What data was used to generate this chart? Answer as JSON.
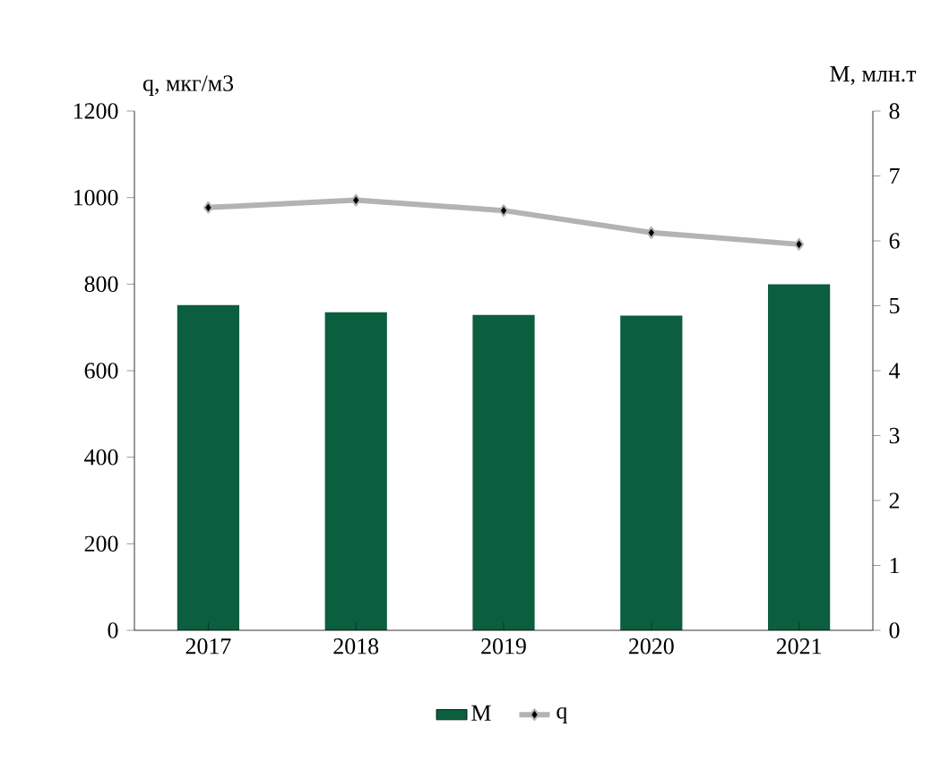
{
  "chart_data": {
    "type": "bar",
    "ylabel": "q, мкг/м3",
    "y2label": "M, млн.т",
    "categories": [
      "2017",
      "2018",
      "2019",
      "2020",
      "2021"
    ],
    "ylim": [
      0,
      1200
    ],
    "yticks": [
      0,
      200,
      400,
      600,
      800,
      1000,
      1200
    ],
    "y2lim": [
      0,
      8
    ],
    "y2ticks": [
      0,
      1,
      2,
      3,
      4,
      5,
      6,
      7,
      8
    ],
    "legend": "bottom",
    "marker": "diamond",
    "series": [
      {
        "name": "M",
        "axis": "y2",
        "color": "#0b5e3e",
        "values": [
          5.01,
          4.9,
          4.86,
          4.85,
          5.33
        ]
      },
      {
        "name": "q",
        "type": "line",
        "axis": "y",
        "color": "#b3b3b3",
        "values": [
          977,
          994,
          970,
          919,
          892
        ]
      }
    ]
  }
}
